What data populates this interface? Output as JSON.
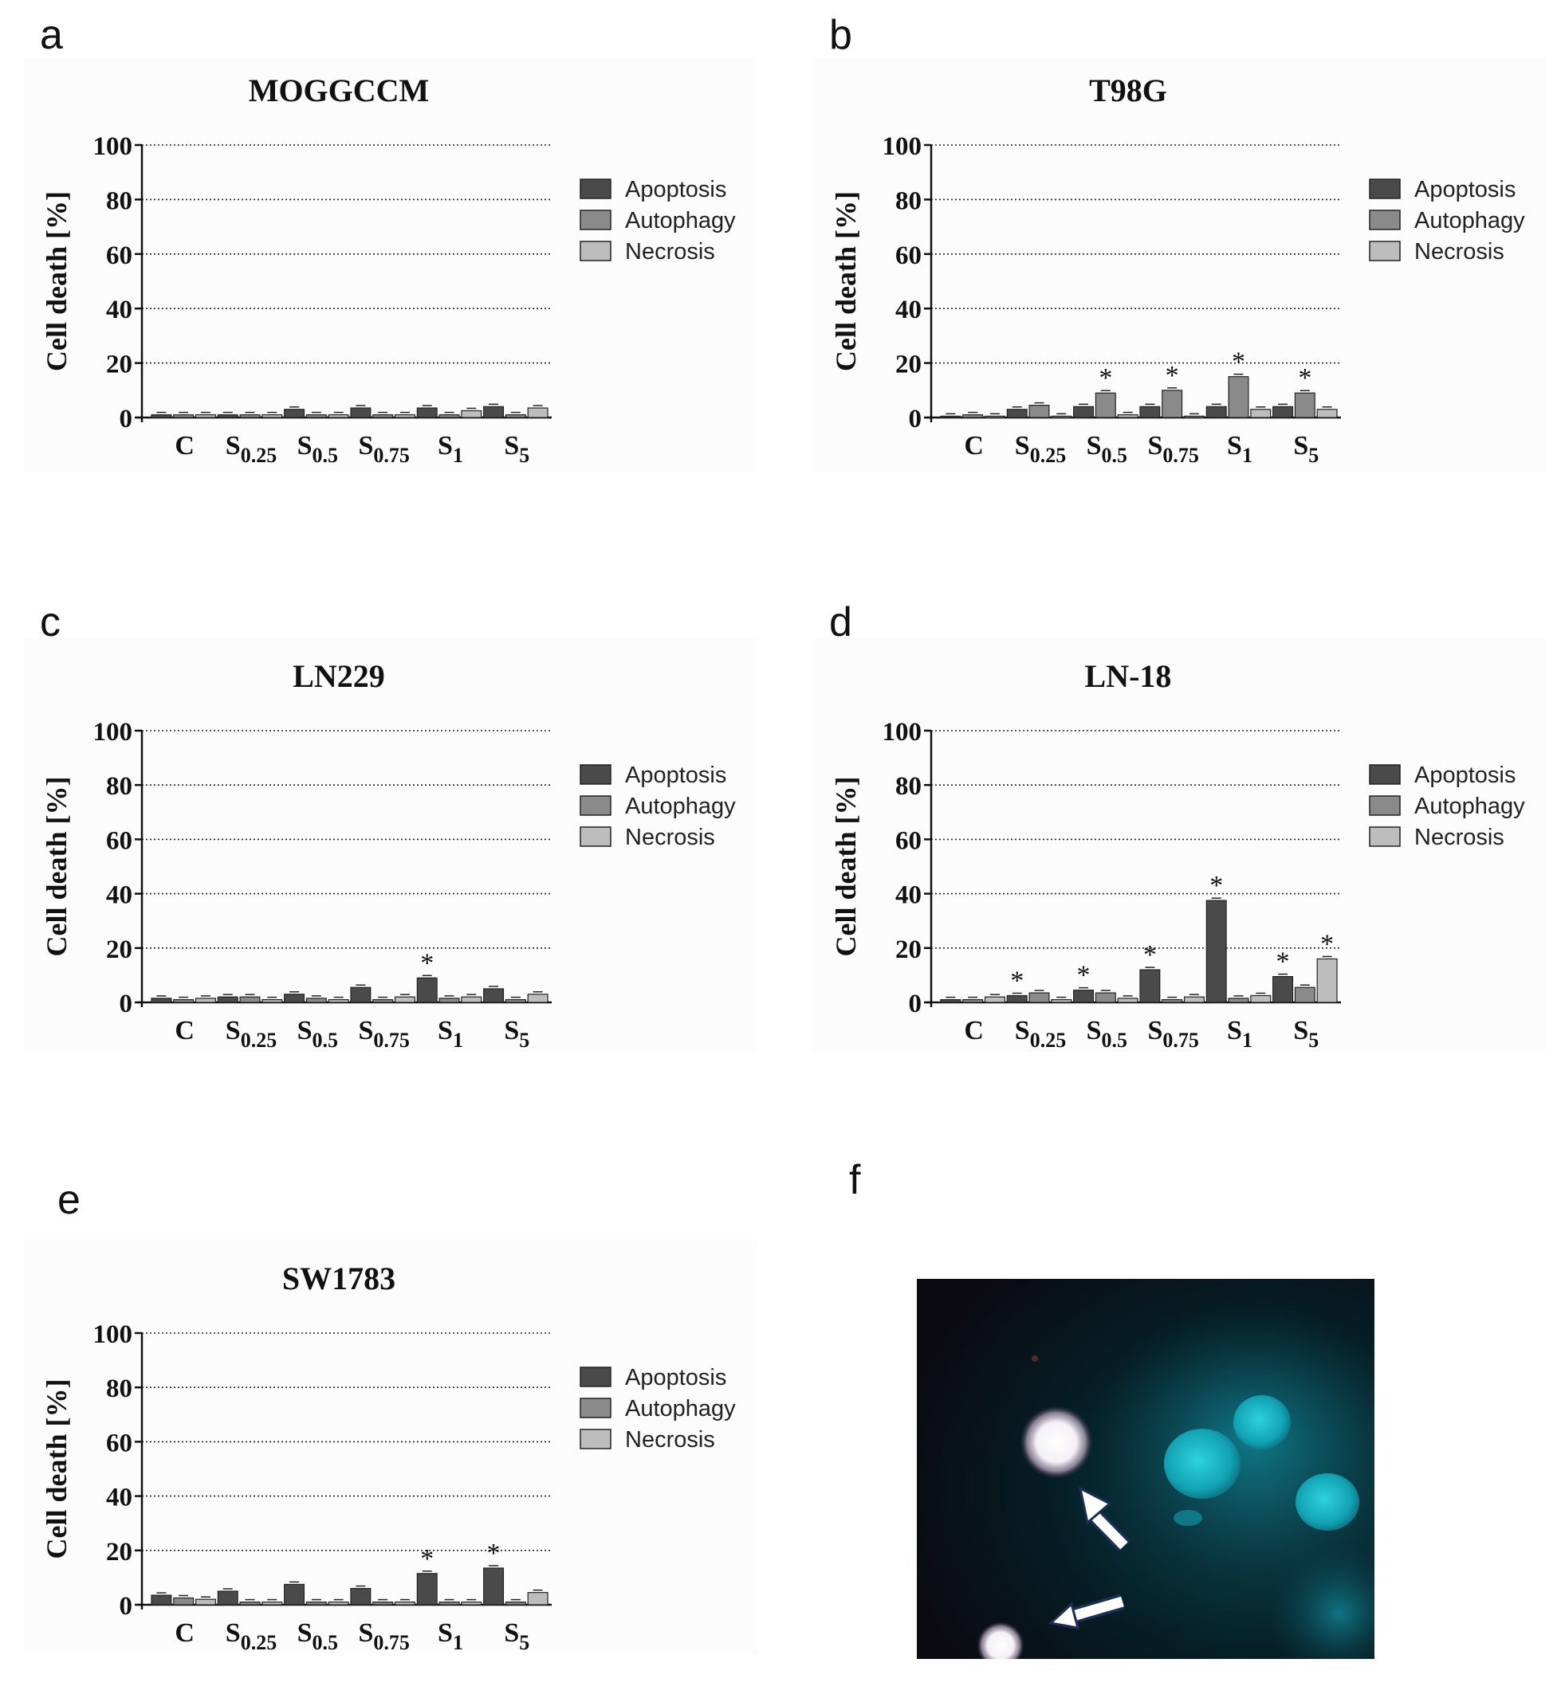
{
  "figure": {
    "panel_letters": [
      "a",
      "b",
      "c",
      "d",
      "e",
      "f"
    ]
  },
  "colors": {
    "apoptosis": "#4a4a4a",
    "autophagy": "#8a8a8a",
    "necrosis": "#bdbdbd",
    "background_panel": "#fcfcfc"
  },
  "chart_data": [
    {
      "panel": "a",
      "type": "bar",
      "title": "MOGGCCM",
      "ylabel": "Cell death [%]",
      "xlabel": "",
      "ylim": [
        0,
        100
      ],
      "yticks": [
        0,
        20,
        40,
        60,
        80,
        100
      ],
      "grid": true,
      "legend_position": "right",
      "categories": [
        {
          "base": "C",
          "sub": ""
        },
        {
          "base": "S",
          "sub": "0.25"
        },
        {
          "base": "S",
          "sub": "0.5"
        },
        {
          "base": "S",
          "sub": "0.75"
        },
        {
          "base": "S",
          "sub": "1"
        },
        {
          "base": "S",
          "sub": "5"
        }
      ],
      "series": [
        {
          "name": "Apoptosis",
          "values": [
            1.0,
            1.0,
            3.0,
            3.5,
            3.5,
            4.0
          ]
        },
        {
          "name": "Autophagy",
          "values": [
            1.0,
            1.0,
            1.0,
            1.0,
            1.0,
            1.0
          ]
        },
        {
          "name": "Necrosis",
          "values": [
            1.0,
            1.0,
            1.0,
            1.0,
            2.5,
            3.5
          ]
        }
      ],
      "significant": []
    },
    {
      "panel": "b",
      "type": "bar",
      "title": "T98G",
      "ylabel": "Cell death [%]",
      "xlabel": "",
      "ylim": [
        0,
        100
      ],
      "yticks": [
        0,
        20,
        40,
        60,
        80,
        100
      ],
      "grid": true,
      "legend_position": "right",
      "categories": [
        {
          "base": "C",
          "sub": ""
        },
        {
          "base": "S",
          "sub": "0.25"
        },
        {
          "base": "S",
          "sub": "0.5"
        },
        {
          "base": "S",
          "sub": "0.75"
        },
        {
          "base": "S",
          "sub": "1"
        },
        {
          "base": "S",
          "sub": "5"
        }
      ],
      "series": [
        {
          "name": "Apoptosis",
          "values": [
            0.5,
            3.0,
            4.0,
            4.0,
            4.0,
            4.0
          ]
        },
        {
          "name": "Autophagy",
          "values": [
            1.0,
            4.5,
            9.0,
            10.0,
            15.0,
            9.0
          ]
        },
        {
          "name": "Necrosis",
          "values": [
            0.5,
            0.5,
            1.0,
            0.5,
            3.0,
            3.0
          ]
        }
      ],
      "significant": [
        [
          2,
          1
        ],
        [
          3,
          1
        ],
        [
          4,
          1
        ],
        [
          5,
          1
        ]
      ]
    },
    {
      "panel": "c",
      "type": "bar",
      "title": "LN229",
      "ylabel": "Cell death [%]",
      "xlabel": "",
      "ylim": [
        0,
        100
      ],
      "yticks": [
        0,
        20,
        40,
        60,
        80,
        100
      ],
      "grid": true,
      "legend_position": "right",
      "categories": [
        {
          "base": "C",
          "sub": ""
        },
        {
          "base": "S",
          "sub": "0.25"
        },
        {
          "base": "S",
          "sub": "0.5"
        },
        {
          "base": "S",
          "sub": "0.75"
        },
        {
          "base": "S",
          "sub": "1"
        },
        {
          "base": "S",
          "sub": "5"
        }
      ],
      "series": [
        {
          "name": "Apoptosis",
          "values": [
            1.5,
            2.0,
            3.0,
            5.5,
            9.0,
            5.0
          ]
        },
        {
          "name": "Autophagy",
          "values": [
            1.0,
            2.0,
            1.5,
            1.0,
            1.5,
            1.0
          ]
        },
        {
          "name": "Necrosis",
          "values": [
            1.5,
            1.0,
            1.0,
            2.0,
            2.0,
            3.0
          ]
        }
      ],
      "significant": [
        [
          4,
          0
        ]
      ]
    },
    {
      "panel": "d",
      "type": "bar",
      "title": "LN-18",
      "ylabel": "Cell death [%]",
      "xlabel": "",
      "ylim": [
        0,
        100
      ],
      "yticks": [
        0,
        20,
        40,
        60,
        80,
        100
      ],
      "grid": true,
      "legend_position": "right",
      "categories": [
        {
          "base": "C",
          "sub": ""
        },
        {
          "base": "S",
          "sub": "0.25"
        },
        {
          "base": "S",
          "sub": "0.5"
        },
        {
          "base": "S",
          "sub": "0.75"
        },
        {
          "base": "S",
          "sub": "1"
        },
        {
          "base": "S",
          "sub": "5"
        }
      ],
      "series": [
        {
          "name": "Apoptosis",
          "values": [
            1.0,
            2.5,
            4.5,
            12.0,
            37.5,
            9.5
          ]
        },
        {
          "name": "Autophagy",
          "values": [
            1.0,
            3.5,
            3.5,
            1.0,
            1.5,
            5.5
          ]
        },
        {
          "name": "Necrosis",
          "values": [
            2.0,
            1.0,
            1.5,
            2.0,
            2.5,
            16.0
          ]
        }
      ],
      "significant": [
        [
          1,
          0
        ],
        [
          2,
          0
        ],
        [
          3,
          0
        ],
        [
          4,
          0
        ],
        [
          5,
          0
        ],
        [
          5,
          2
        ]
      ]
    },
    {
      "panel": "e",
      "type": "bar",
      "title": "SW1783",
      "ylabel": "Cell death [%]",
      "xlabel": "",
      "ylim": [
        0,
        100
      ],
      "yticks": [
        0,
        20,
        40,
        60,
        80,
        100
      ],
      "grid": true,
      "legend_position": "right",
      "categories": [
        {
          "base": "C",
          "sub": ""
        },
        {
          "base": "S",
          "sub": "0.25"
        },
        {
          "base": "S",
          "sub": "0.5"
        },
        {
          "base": "S",
          "sub": "0.75"
        },
        {
          "base": "S",
          "sub": "1"
        },
        {
          "base": "S",
          "sub": "5"
        }
      ],
      "series": [
        {
          "name": "Apoptosis",
          "values": [
            3.5,
            5.0,
            7.5,
            6.0,
            11.5,
            13.5
          ]
        },
        {
          "name": "Autophagy",
          "values": [
            2.5,
            1.0,
            1.0,
            1.0,
            1.0,
            1.0
          ]
        },
        {
          "name": "Necrosis",
          "values": [
            2.0,
            1.0,
            1.0,
            1.0,
            1.0,
            4.5
          ]
        }
      ],
      "significant": [
        [
          4,
          0
        ],
        [
          5,
          0
        ]
      ]
    }
  ]
}
